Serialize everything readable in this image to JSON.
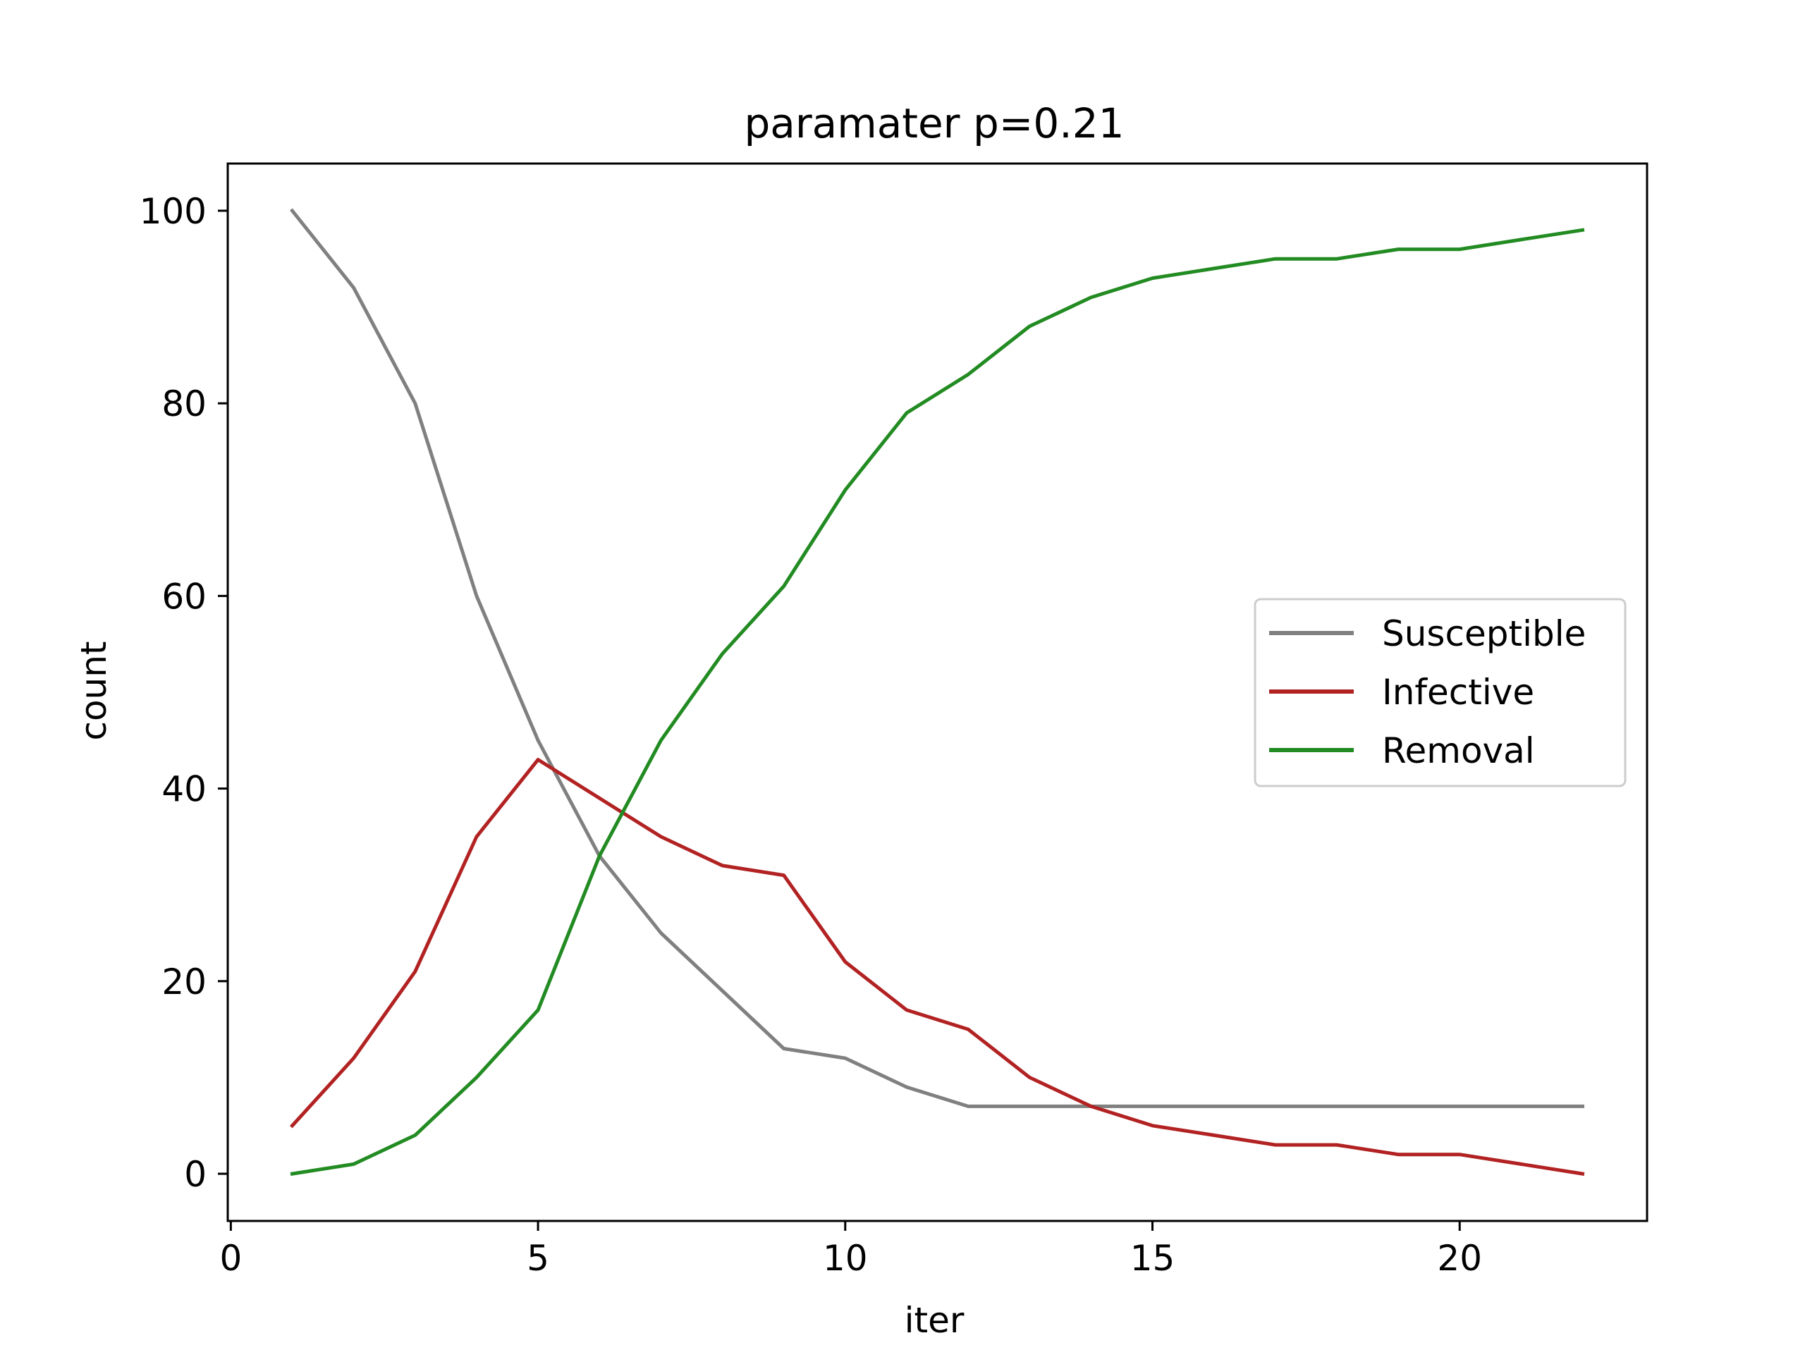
{
  "chart_data": {
    "type": "line",
    "title": "paramater p=0.21",
    "xlabel": "iter",
    "ylabel": "count",
    "xlim": [
      -0.05,
      23.05
    ],
    "ylim": [
      -4.9,
      104.9
    ],
    "xticks": [
      0,
      5,
      10,
      15,
      20
    ],
    "yticks": [
      0,
      20,
      40,
      60,
      80,
      100
    ],
    "grid": false,
    "legend_position": "center-right",
    "x": [
      1,
      2,
      3,
      4,
      5,
      6,
      7,
      8,
      9,
      10,
      11,
      12,
      13,
      14,
      15,
      16,
      17,
      18,
      19,
      20,
      21,
      22
    ],
    "series": [
      {
        "name": "Susceptible",
        "color": "#808080",
        "values": [
          100,
          92,
          80,
          60,
          45,
          33,
          25,
          19,
          13,
          12,
          9,
          7,
          7,
          7,
          7,
          7,
          7,
          7,
          7,
          7,
          7,
          7
        ]
      },
      {
        "name": "Infective",
        "color": "#b22222",
        "values": [
          5,
          12,
          21,
          35,
          43,
          39,
          35,
          32,
          31,
          22,
          17,
          15,
          10,
          7,
          5,
          4,
          3,
          3,
          2,
          2,
          1,
          0
        ]
      },
      {
        "name": "Removal",
        "color": "#228b22",
        "values": [
          0,
          1,
          4,
          10,
          17,
          33,
          45,
          54,
          61,
          71,
          79,
          83,
          88,
          91,
          93,
          94,
          95,
          95,
          96,
          96,
          97,
          98
        ]
      }
    ]
  }
}
